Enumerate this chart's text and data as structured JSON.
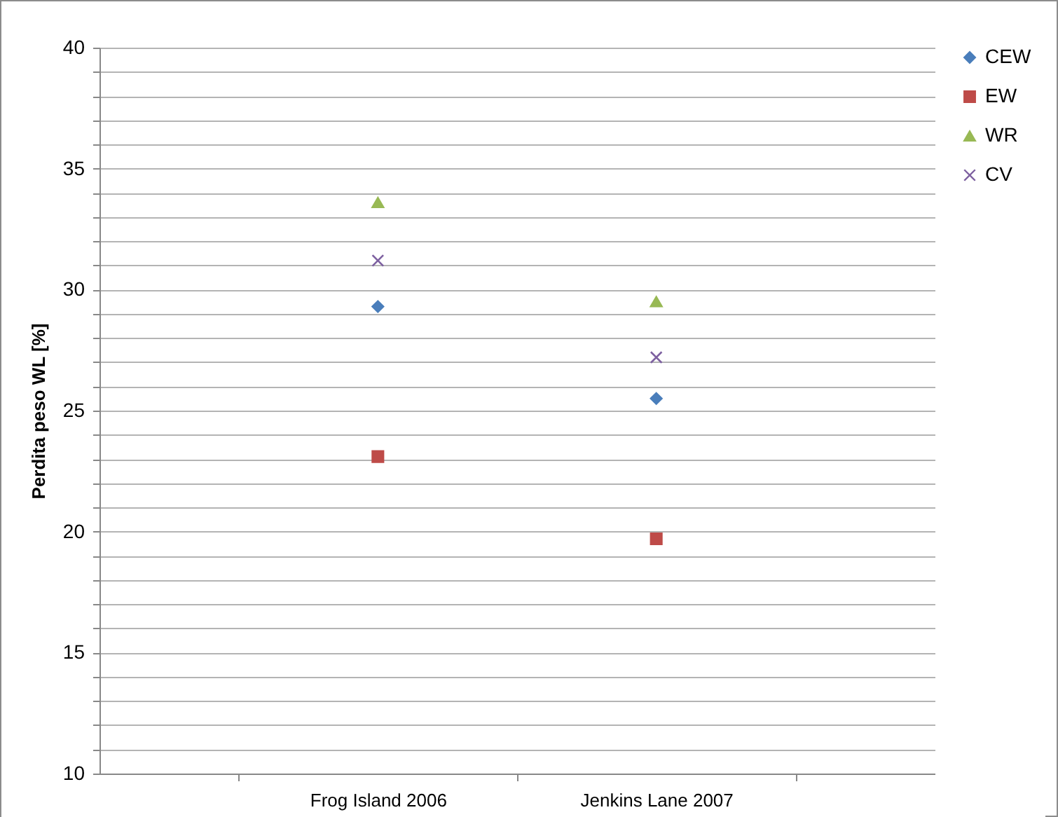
{
  "chart_data": {
    "type": "scatter",
    "ylabel": "Perdita peso WL [%]",
    "categories": [
      "Frog Island 2006",
      "Jenkins Lane 2007"
    ],
    "series": [
      {
        "name": "CEW",
        "color": "#4a7ebb",
        "marker": "diamond",
        "values": [
          29.3,
          25.5
        ]
      },
      {
        "name": "EW",
        "color": "#be4b48",
        "marker": "square",
        "values": [
          23.1,
          19.7
        ]
      },
      {
        "name": "WR",
        "color": "#98b954",
        "marker": "triangle",
        "values": [
          33.6,
          29.5
        ]
      },
      {
        "name": "CV",
        "color": "#7d60a0",
        "marker": "cross",
        "values": [
          31.2,
          27.2
        ]
      }
    ],
    "ylim": [
      10,
      40
    ],
    "yticks": [
      10,
      {
        "value": 11,
        "label": null
      },
      {
        "value": 12,
        "label": null
      },
      {
        "value": 13,
        "label": null
      },
      {
        "value": 14,
        "label": null
      },
      15,
      {
        "value": 16,
        "label": null
      },
      {
        "value": 17,
        "label": null
      },
      {
        "value": 18,
        "label": null
      },
      {
        "value": 19,
        "label": null
      },
      20,
      {
        "value": 21,
        "label": null
      },
      {
        "value": 22,
        "label": null
      },
      {
        "value": 23,
        "label": null
      },
      {
        "value": 24,
        "label": null
      },
      25,
      {
        "value": 26,
        "label": null
      },
      {
        "value": 27,
        "label": null
      },
      {
        "value": 28,
        "label": null
      },
      {
        "value": 29,
        "label": null
      },
      30,
      {
        "value": 31,
        "label": null
      },
      {
        "value": 32,
        "label": null
      },
      {
        "value": 33,
        "label": null
      },
      {
        "value": 34,
        "label": null
      },
      35,
      {
        "value": 36,
        "label": null
      },
      {
        "value": 37,
        "label": null
      },
      {
        "value": 38,
        "label": null
      },
      {
        "value": 39,
        "label": null
      },
      40
    ],
    "grid": "y",
    "legend": "right"
  }
}
